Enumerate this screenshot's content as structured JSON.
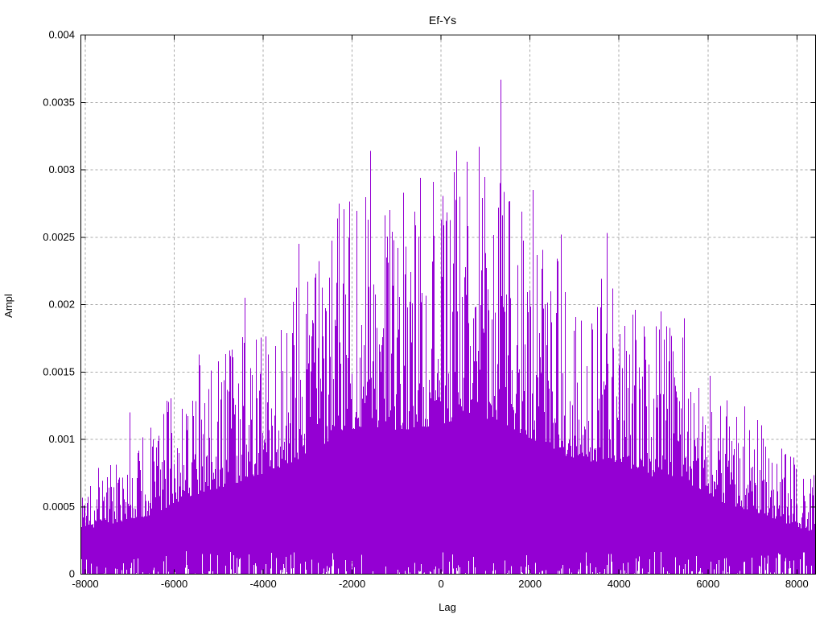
{
  "figure": {
    "title": "Ef-Ys",
    "xlabel": "Lag",
    "ylabel": "Ampl"
  },
  "axes": {
    "xlim": [
      -8100,
      8420
    ],
    "ylim": [
      0,
      0.004
    ],
    "x_ticks": [
      -8000,
      -6000,
      -4000,
      -2000,
      0,
      2000,
      4000,
      6000,
      8000
    ],
    "x_tick_labels": [
      "-8000",
      "-6000",
      "-4000",
      "-2000",
      "0",
      "2000",
      "4000",
      "6000",
      "8000"
    ],
    "y_ticks": [
      0,
      0.0005,
      0.001,
      0.0015,
      0.002,
      0.0025,
      0.003,
      0.0035,
      0.004
    ],
    "y_tick_labels": [
      "0",
      "0.0005",
      "0.001",
      "0.0015",
      "0.002",
      "0.0025",
      "0.003",
      "0.0035",
      "0.004"
    ],
    "grid": true,
    "grid_style": "dashed",
    "ticks": "inward-mirrored"
  },
  "chart_data": {
    "type": "bar",
    "style": "impulses",
    "title": "Ef-Ys",
    "xlabel": "Lag",
    "ylabel": "Ampl",
    "xlim": [
      -8100,
      8420
    ],
    "ylim": [
      0,
      0.004
    ],
    "legend": "none",
    "series": [
      {
        "name": "Ef-Ys impulses",
        "description": "Dense noisy impulse train (one vertical line per lag) whose maxima follow a broad mound-shaped envelope, solid fill below ~38% of the local envelope, occasional thin white notches at the baseline.",
        "envelope_lag": [
          -8100,
          -7300,
          -6500,
          -5700,
          -4900,
          -4100,
          -3300,
          -2500,
          -1700,
          -900,
          -100,
          700,
          1500,
          2300,
          3100,
          3900,
          4700,
          5500,
          6300,
          7100,
          7900,
          8420
        ],
        "envelope_max": [
          0.00085,
          0.001,
          0.00115,
          0.0015,
          0.0017,
          0.0019,
          0.0022,
          0.0026,
          0.0029,
          0.0028,
          0.0029,
          0.0031,
          0.0029,
          0.0025,
          0.0022,
          0.0022,
          0.0019,
          0.0018,
          0.0014,
          0.0012,
          0.00095,
          0.0008
        ],
        "peaks": [
          {
            "lag": -7020,
            "ampl": 0.0012
          },
          {
            "lag": -5450,
            "ampl": 0.00163
          },
          {
            "lag": -4430,
            "ampl": 0.00205
          },
          {
            "lag": -3210,
            "ampl": 0.00245
          },
          {
            "lag": -2300,
            "ampl": 0.00275
          },
          {
            "lag": -1590,
            "ampl": 0.00314
          },
          {
            "lag": -850,
            "ampl": 0.00283
          },
          {
            "lag": -470,
            "ampl": 0.00294
          },
          {
            "lag": -180,
            "ampl": 0.00291
          },
          {
            "lag": 340,
            "ampl": 0.00314
          },
          {
            "lag": 850,
            "ampl": 0.00317
          },
          {
            "lag": 1335,
            "ampl": 0.00367
          },
          {
            "lag": 2060,
            "ampl": 0.00285
          },
          {
            "lag": 2700,
            "ampl": 0.00252
          },
          {
            "lag": 3730,
            "ampl": 0.00253
          },
          {
            "lag": 4950,
            "ampl": 0.00195
          },
          {
            "lag": 5470,
            "ampl": 0.0019
          }
        ],
        "global_peak": {
          "lag": 1335,
          "ampl": 0.00367
        },
        "noise_floor_fraction": 0.38,
        "bottom_notch": {
          "probability": 0.3,
          "max_ampl": 0.00017
        }
      }
    ]
  },
  "colors": {
    "impulse": "#9400d3",
    "grid": "#a8a8a8",
    "axis": "#000000",
    "background": "#ffffff",
    "text": "#000000"
  },
  "render": {
    "seed": 1337,
    "height_power": 1.8
  }
}
